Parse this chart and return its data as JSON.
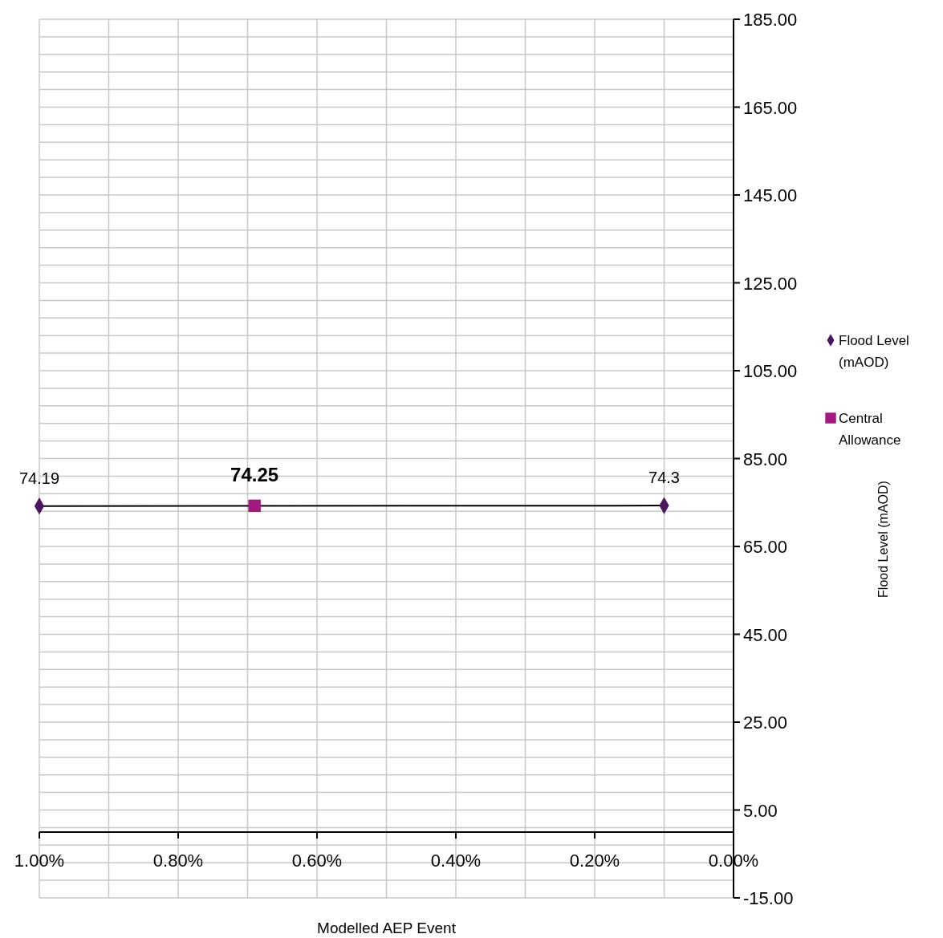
{
  "chart_data": {
    "type": "line",
    "xlabel": "Modelled AEP Event",
    "annotations": [
      "Flood Level (mAOD)"
    ],
    "xlim": [
      1,
      0
    ],
    "ylim": [
      -15,
      185
    ],
    "xticks": [
      {
        "value": 1,
        "label": "1.00%"
      },
      {
        "value": 0.9,
        "label": null
      },
      {
        "value": 0.8,
        "label": "0.80%"
      },
      {
        "value": 0.7,
        "label": null
      },
      {
        "value": 0.6,
        "label": "0.60%"
      },
      {
        "value": 0.5,
        "label": null
      },
      {
        "value": 0.4,
        "label": "0.40%"
      },
      {
        "value": 0.3,
        "label": null
      },
      {
        "value": 0.2,
        "label": "0.20%"
      },
      {
        "value": 0.1,
        "label": null
      },
      {
        "value": 0,
        "label": "0.00%"
      }
    ],
    "yticks": [
      {
        "value": -15,
        "label": "-15.00"
      },
      {
        "value": -11,
        "label": null
      },
      {
        "value": -7,
        "label": null
      },
      {
        "value": -3,
        "label": null
      },
      {
        "value": 1,
        "label": null
      },
      {
        "value": 5,
        "label": "5.00"
      },
      {
        "value": 9,
        "label": null
      },
      {
        "value": 13,
        "label": null
      },
      {
        "value": 17,
        "label": null
      },
      {
        "value": 21,
        "label": null
      },
      {
        "value": 25,
        "label": "25.00"
      },
      {
        "value": 29,
        "label": null
      },
      {
        "value": 33,
        "label": null
      },
      {
        "value": 37,
        "label": null
      },
      {
        "value": 41,
        "label": null
      },
      {
        "value": 45,
        "label": "45.00"
      },
      {
        "value": 49,
        "label": null
      },
      {
        "value": 53,
        "label": null
      },
      {
        "value": 57,
        "label": null
      },
      {
        "value": 61,
        "label": null
      },
      {
        "value": 65,
        "label": "65.00"
      },
      {
        "value": 69,
        "label": null
      },
      {
        "value": 73,
        "label": null
      },
      {
        "value": 77,
        "label": null
      },
      {
        "value": 81,
        "label": null
      },
      {
        "value": 85,
        "label": "85.00"
      },
      {
        "value": 89,
        "label": null
      },
      {
        "value": 93,
        "label": null
      },
      {
        "value": 97,
        "label": null
      },
      {
        "value": 101,
        "label": null
      },
      {
        "value": 105,
        "label": "105.00"
      },
      {
        "value": 109,
        "label": null
      },
      {
        "value": 113,
        "label": null
      },
      {
        "value": 117,
        "label": null
      },
      {
        "value": 121,
        "label": null
      },
      {
        "value": 125,
        "label": "125.00"
      },
      {
        "value": 129,
        "label": null
      },
      {
        "value": 133,
        "label": null
      },
      {
        "value": 137,
        "label": null
      },
      {
        "value": 141,
        "label": null
      },
      {
        "value": 145,
        "label": "145.00"
      },
      {
        "value": 149,
        "label": null
      },
      {
        "value": 153,
        "label": null
      },
      {
        "value": 157,
        "label": null
      },
      {
        "value": 161,
        "label": null
      },
      {
        "value": 165,
        "label": "165.00"
      },
      {
        "value": 169,
        "label": null
      },
      {
        "value": 173,
        "label": null
      },
      {
        "value": 177,
        "label": null
      },
      {
        "value": 181,
        "label": null
      },
      {
        "value": 185,
        "label": "185.00"
      }
    ],
    "grid": true,
    "legend": "right",
    "data_labels": true,
    "series": [
      {
        "name": "Flood Level (mAOD)",
        "marker": "diamond",
        "color": "#4b1560",
        "x": [
          1,
          0.1
        ],
        "values": [
          74.19,
          74.3
        ]
      },
      {
        "name": "Central Allowance",
        "type": "scatter",
        "marker": "square",
        "color": "#a3197f",
        "x": [
          0.69
        ],
        "values": [
          74.25
        ]
      }
    ]
  }
}
